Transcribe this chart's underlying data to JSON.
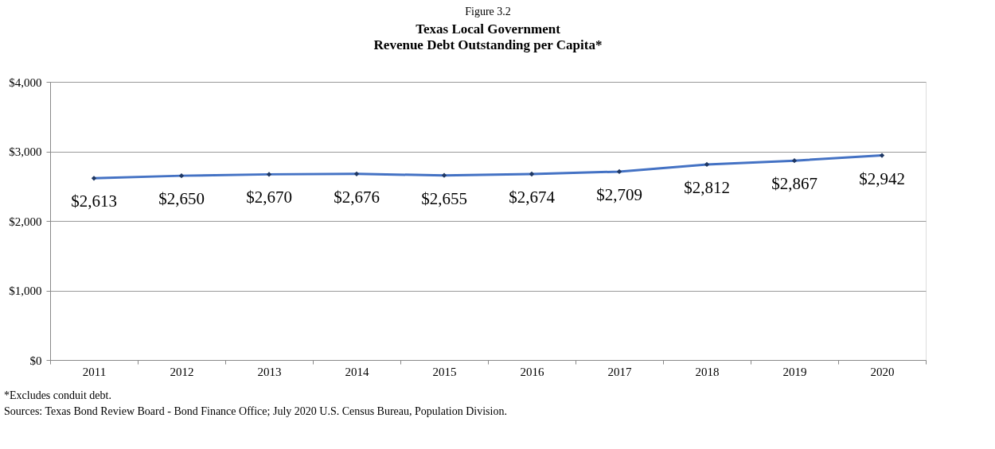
{
  "chart_data": {
    "type": "line",
    "title": "Texas Local Government\nRevenue Debt Outstanding per Capita*",
    "categories": [
      "2011",
      "2012",
      "2013",
      "2014",
      "2015",
      "2016",
      "2017",
      "2018",
      "2019",
      "2020"
    ],
    "series": [
      {
        "color": "#4472c4",
        "values": [
          2613,
          2650,
          2670,
          2676,
          2655,
          2674,
          2709,
          2812,
          2867,
          2942
        ],
        "value_labels": [
          "$2,613",
          "$2,650",
          "$2,670",
          "$2,676",
          "$2,655",
          "$2,674",
          "$2,709",
          "$2,812",
          "$2,867",
          "$2,942"
        ]
      }
    ],
    "ylim": [
      0,
      4000
    ],
    "yticks": [
      {
        "value": 0,
        "label": "$0"
      },
      {
        "value": 1000,
        "label": "$1,000"
      },
      {
        "value": 2000,
        "label": "$2,000"
      },
      {
        "value": 3000,
        "label": "$3,000"
      },
      {
        "value": 4000,
        "label": "$4,000"
      }
    ],
    "grid": "y",
    "marker": "diamond",
    "line_style": "solid",
    "annotations": [
      "Figure 3.2",
      "*Excludes conduit debt.",
      "Sources: Texas Bond Review Board - Bond Finance Office; July 2020 U.S. Census Bureau, Population Division."
    ]
  }
}
